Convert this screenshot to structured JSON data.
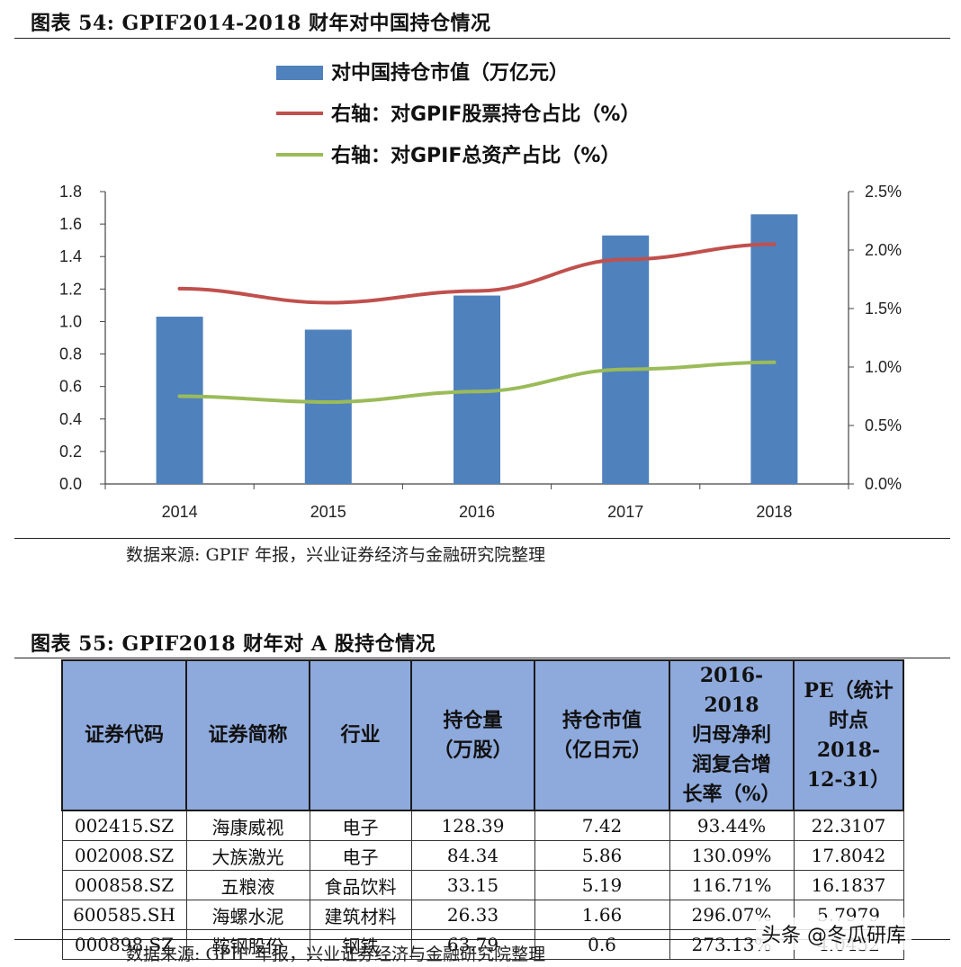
{
  "figure1": {
    "title": "图表 54: GPIF2014-2018 财年对中国持仓情况",
    "source": "数据来源: GPIF 年报，兴业证券经济与金融研究院整理"
  },
  "chart_data": {
    "type": "bar",
    "categories": [
      "2014",
      "2015",
      "2016",
      "2017",
      "2018"
    ],
    "series": [
      {
        "name": "对中国持仓市值（万亿元）",
        "kind": "bar",
        "axis": "left",
        "color": "#4f81bd",
        "values": [
          1.03,
          0.95,
          1.16,
          1.53,
          1.66
        ]
      },
      {
        "name": "右轴：对GPIF股票持仓占比（%）",
        "kind": "line",
        "axis": "right",
        "color": "#c0504d",
        "values": [
          1.67,
          1.55,
          1.65,
          1.92,
          2.05
        ]
      },
      {
        "name": "右轴：对GPIF总资产占比（%）",
        "kind": "line",
        "axis": "right",
        "color": "#9bbb59",
        "values": [
          0.75,
          0.7,
          0.79,
          0.98,
          1.04
        ]
      }
    ],
    "y_left": {
      "min": 0,
      "max": 1.8,
      "ticks": [
        "0.0",
        "0.2",
        "0.4",
        "0.6",
        "0.8",
        "1.0",
        "1.2",
        "1.4",
        "1.6",
        "1.8"
      ]
    },
    "y_right": {
      "min": 0,
      "max": 2.5,
      "ticks": [
        "0.0%",
        "0.5%",
        "1.0%",
        "1.5%",
        "2.0%",
        "2.5%"
      ]
    },
    "grid": false,
    "legend_position": "top"
  },
  "figure2": {
    "title": "图表 55: GPIF2018 财年对 A 股持仓情况",
    "source": "数据来源: GPIF 年报，兴业证券经济与金融研究院整理",
    "header_color": "#8ea9db",
    "columns": [
      [
        "证券代码"
      ],
      [
        "证券简称"
      ],
      [
        "行业"
      ],
      [
        "持仓量",
        "（万股）"
      ],
      [
        "持仓市值",
        "（亿日元）"
      ],
      [
        "2016-2018",
        "归母净利",
        "润复合增",
        "长率（%）"
      ],
      [
        "PE（统计",
        "时点",
        "2018-",
        "12-31）"
      ]
    ],
    "rows": [
      [
        "002415.SZ",
        "海康威视",
        "电子",
        "128.39",
        "7.42",
        "93.44%",
        "22.3107"
      ],
      [
        "002008.SZ",
        "大族激光",
        "电子",
        "84.34",
        "5.86",
        "130.09%",
        "17.8042"
      ],
      [
        "000858.SZ",
        "五粮液",
        "食品饮料",
        "33.15",
        "5.19",
        "116.71%",
        "16.1837"
      ],
      [
        "600585.SH",
        "海螺水泥",
        "建筑材料",
        "26.33",
        "1.66",
        "296.07%",
        "5.7979"
      ],
      [
        "000898.SZ",
        "鞍钢股份",
        "钢铁",
        "63.79",
        "0.6",
        "273.13%",
        "4.0452"
      ]
    ]
  },
  "watermark": "头条 @冬瓜研库"
}
